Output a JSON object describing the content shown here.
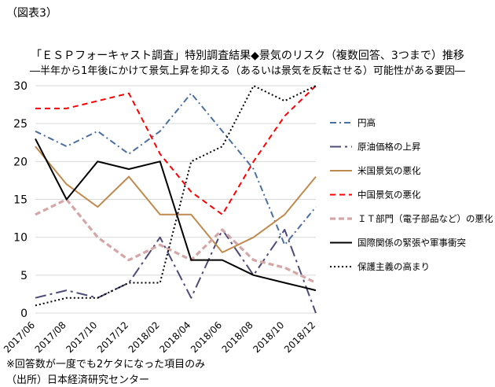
{
  "figure_label": "（図表3）",
  "note": "※回答数が一度でも2ケタになった項目のみ",
  "source": "（出所）日本経済研究センター",
  "chart_data": {
    "type": "line",
    "title": "「ＥＳＰフォーキャスト調査」特別調査結果◆景気のリスク（複数回答、3つまで）推移",
    "subtitle": "―半年から1年後にかけて景気上昇を抑える（あるいは景気を反転させる）可能性がある要因―",
    "x": [
      "2017/06",
      "2017/08",
      "2017/10",
      "2017/12",
      "2018/02",
      "2018/04",
      "2018/06",
      "2018/08",
      "2018/10",
      "2018/12"
    ],
    "ylim": [
      0,
      30
    ],
    "yticks": [
      0,
      5,
      10,
      15,
      20,
      25,
      30
    ],
    "grid": true,
    "legend_position": "right",
    "series": [
      {
        "name": "円高",
        "color": "#4a6fa0",
        "dash": "dashdot",
        "values": [
          24,
          22,
          24,
          21,
          24,
          29,
          24,
          19,
          9,
          14
        ]
      },
      {
        "name": "原油価格の上昇",
        "color": "#4d4b7a",
        "dash": "longdashdot",
        "values": [
          2,
          3,
          2,
          4,
          10,
          2,
          11,
          5,
          11,
          0
        ]
      },
      {
        "name": "米国景気の悪化",
        "color": "#c08a4e",
        "dash": "solid",
        "values": [
          22,
          17,
          14,
          18,
          13,
          13,
          8,
          10,
          13,
          18
        ]
      },
      {
        "name": "中国景気の悪化",
        "color": "#ff0000",
        "dash": "dash",
        "values": [
          27,
          27,
          28,
          29,
          21,
          16,
          13,
          20,
          26,
          30
        ]
      },
      {
        "name": "ＩＴ部門（電子部品など）の悪化",
        "color": "#d5a6a6",
        "dash": "thickdash",
        "values": [
          13,
          15,
          10,
          7,
          9,
          7,
          11,
          7,
          6,
          4
        ]
      },
      {
        "name": "国際関係の緊張や軍事衝突",
        "color": "#000000",
        "dash": "solid",
        "values": [
          23,
          15,
          20,
          19,
          20,
          7,
          7,
          5,
          4,
          3
        ]
      },
      {
        "name": "保護主義の高まり",
        "color": "#000000",
        "dash": "dot",
        "values": [
          1,
          2,
          2,
          4,
          4,
          20,
          22,
          30,
          28,
          30
        ]
      }
    ]
  }
}
